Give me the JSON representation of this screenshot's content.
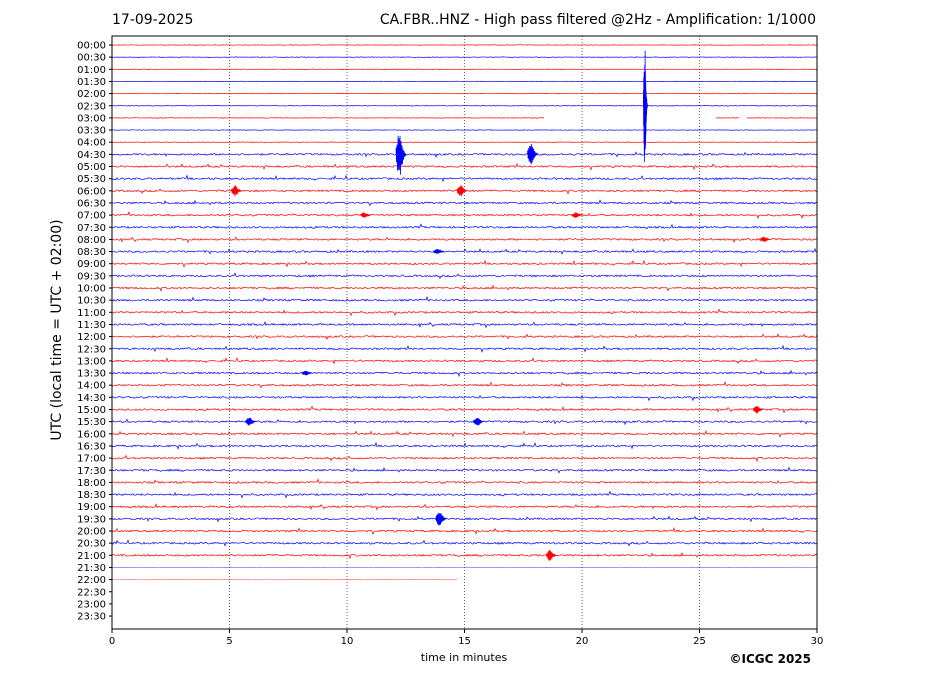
{
  "header": {
    "date": "17-09-2025",
    "title": "CA.FBR..HNZ - High pass filtered @2Hz - Amplification: 1/1000"
  },
  "footer": {
    "copyright": "©ICGC 2025"
  },
  "chart_data": {
    "type": "line",
    "title": "CA.FBR..HNZ - High pass filtered @2Hz - Amplification: 1/1000",
    "xlabel": "time in minutes",
    "ylabel": "UTC (local time = UTC + 02:00)",
    "xlim": [
      0,
      30
    ],
    "x_ticks": [
      0,
      5,
      10,
      15,
      20,
      25,
      30
    ],
    "x_grid": "dotted vertical lines at 5, 10, 15, 20, 25",
    "row_labels": [
      "00:00",
      "00:30",
      "01:00",
      "01:30",
      "02:00",
      "02:30",
      "03:00",
      "03:30",
      "04:00",
      "04:30",
      "05:00",
      "05:30",
      "06:00",
      "06:30",
      "07:00",
      "07:30",
      "08:00",
      "08:30",
      "09:00",
      "09:30",
      "10:00",
      "10:30",
      "11:00",
      "11:30",
      "12:00",
      "12:30",
      "13:00",
      "13:30",
      "14:00",
      "14:30",
      "15:00",
      "15:30",
      "16:00",
      "16:30",
      "17:00",
      "17:30",
      "18:00",
      "18:30",
      "19:00",
      "19:30",
      "20:00",
      "20:30",
      "21:00",
      "21:30",
      "22:00",
      "22:30",
      "23:00",
      "23:30"
    ],
    "row_colors": [
      "#ff0000",
      "#0000ff"
    ],
    "traces_end_minutes": {
      "22:00": 14.7
    },
    "gaps": [
      {
        "row": "03:00",
        "from": 18.4,
        "to": 25.7
      },
      {
        "row": "03:00",
        "from": 26.7,
        "to": 27.0
      }
    ],
    "events": [
      {
        "row": "02:30",
        "minute": 22.7,
        "amplitude": 1.0
      },
      {
        "row": "04:30",
        "minute": 12.3,
        "amplitude": 0.4
      },
      {
        "row": "04:30",
        "minute": 17.9,
        "amplitude": 0.2
      },
      {
        "row": "06:00",
        "minute": 5.3,
        "amplitude": 0.1
      },
      {
        "row": "06:00",
        "minute": 14.9,
        "amplitude": 0.1
      },
      {
        "row": "07:00",
        "minute": 10.8,
        "amplitude": 0.05
      },
      {
        "row": "07:00",
        "minute": 19.8,
        "amplitude": 0.05
      },
      {
        "row": "08:00",
        "minute": 27.8,
        "amplitude": 0.05
      },
      {
        "row": "08:30",
        "minute": 13.9,
        "amplitude": 0.05
      },
      {
        "row": "13:30",
        "minute": 8.3,
        "amplitude": 0.05
      },
      {
        "row": "15:00",
        "minute": 27.5,
        "amplitude": 0.08
      },
      {
        "row": "15:30",
        "minute": 5.9,
        "amplitude": 0.08
      },
      {
        "row": "15:30",
        "minute": 15.6,
        "amplitude": 0.08
      },
      {
        "row": "19:30",
        "minute": 14.0,
        "amplitude": 0.15
      },
      {
        "row": "21:00",
        "minute": 18.7,
        "amplitude": 0.1
      }
    ]
  }
}
